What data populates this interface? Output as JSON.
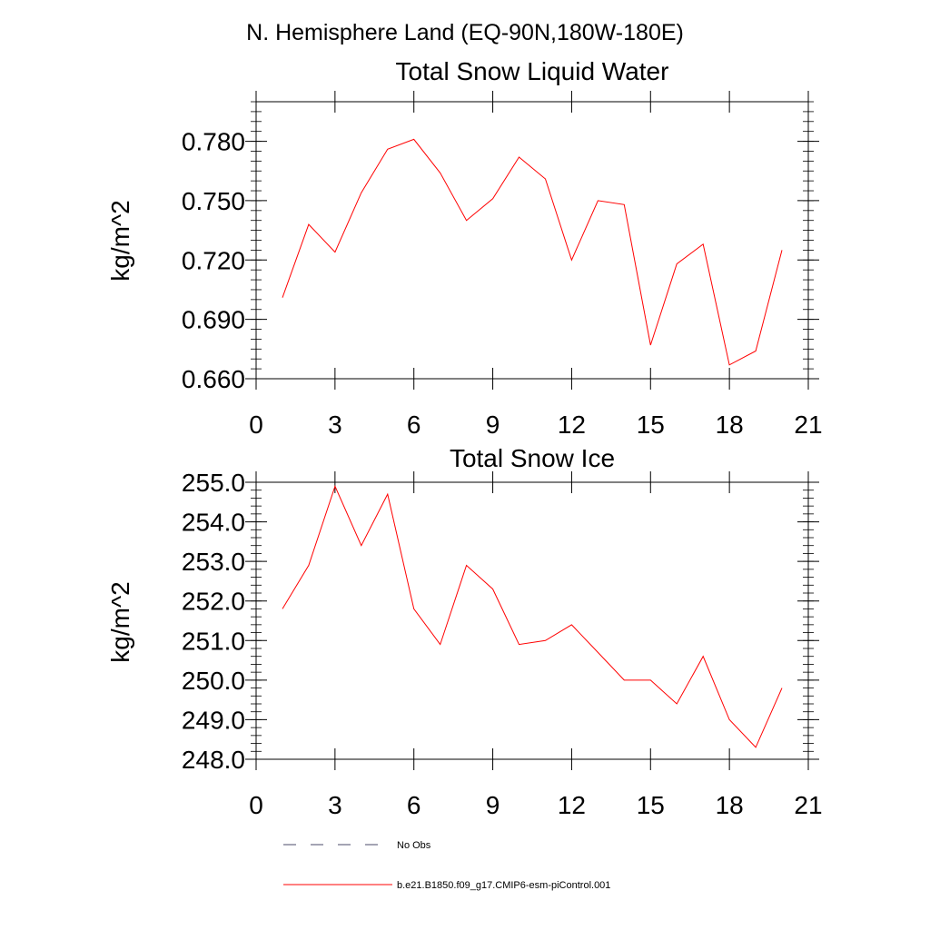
{
  "figure_title": "N. Hemisphere Land (EQ-90N,180W-180E)",
  "chart_data": [
    {
      "type": "line",
      "title": "Total Snow Liquid Water",
      "xlabel": "",
      "ylabel": "kg/m^2",
      "xlim": [
        0,
        21
      ],
      "ylim": [
        0.66,
        0.8
      ],
      "x_ticks": [
        0,
        3,
        6,
        9,
        12,
        15,
        18,
        21
      ],
      "x_tick_labels": [
        "0",
        "3",
        "6",
        "9",
        "12",
        "15",
        "18",
        "21"
      ],
      "y_ticks": [
        0.66,
        0.69,
        0.72,
        0.75,
        0.78
      ],
      "y_tick_labels": [
        "0.660",
        "0.690",
        "0.720",
        "0.750",
        "0.780"
      ],
      "y_minor_step": 0.005,
      "series": [
        {
          "name": "b.e21.B1850.f09_g17.CMIP6-esm-piControl.001",
          "color": "#ff0000",
          "x": [
            1,
            2,
            3,
            4,
            5,
            6,
            7,
            8,
            9,
            10,
            11,
            12,
            13,
            14,
            15,
            16,
            17,
            18,
            19,
            20
          ],
          "values": [
            0.701,
            0.738,
            0.724,
            0.754,
            0.776,
            0.781,
            0.764,
            0.74,
            0.751,
            0.772,
            0.761,
            0.72,
            0.75,
            0.748,
            0.677,
            0.718,
            0.728,
            0.667,
            0.674,
            0.725
          ]
        }
      ]
    },
    {
      "type": "line",
      "title": "Total Snow Ice",
      "xlabel": "",
      "ylabel": "kg/m^2",
      "xlim": [
        0,
        21
      ],
      "ylim": [
        248,
        255
      ],
      "x_ticks": [
        0,
        3,
        6,
        9,
        12,
        15,
        18,
        21
      ],
      "x_tick_labels": [
        "0",
        "3",
        "6",
        "9",
        "12",
        "15",
        "18",
        "21"
      ],
      "y_ticks": [
        248,
        249,
        250,
        251,
        252,
        253,
        254,
        255
      ],
      "y_tick_labels": [
        "248.0",
        "249.0",
        "250.0",
        "251.0",
        "252.0",
        "253.0",
        "254.0",
        "255.0"
      ],
      "y_minor_step": 0.2,
      "series": [
        {
          "name": "b.e21.B1850.f09_g17.CMIP6-esm-piControl.001",
          "color": "#ff0000",
          "x": [
            1,
            2,
            3,
            4,
            5,
            6,
            7,
            8,
            9,
            10,
            11,
            12,
            13,
            14,
            15,
            16,
            17,
            18,
            19,
            20
          ],
          "values": [
            251.8,
            252.9,
            254.9,
            253.4,
            254.7,
            251.8,
            250.9,
            252.9,
            252.3,
            250.9,
            251.0,
            251.4,
            250.7,
            250.0,
            250.0,
            249.4,
            250.6,
            249.0,
            248.3,
            249.8
          ]
        }
      ]
    }
  ],
  "legend": [
    {
      "label": "No Obs",
      "style": "dashed",
      "color": "#4a4a6a"
    },
    {
      "label": "b.e21.B1850.f09_g17.CMIP6-esm-piControl.001",
      "style": "solid",
      "color": "#ff0000"
    }
  ]
}
